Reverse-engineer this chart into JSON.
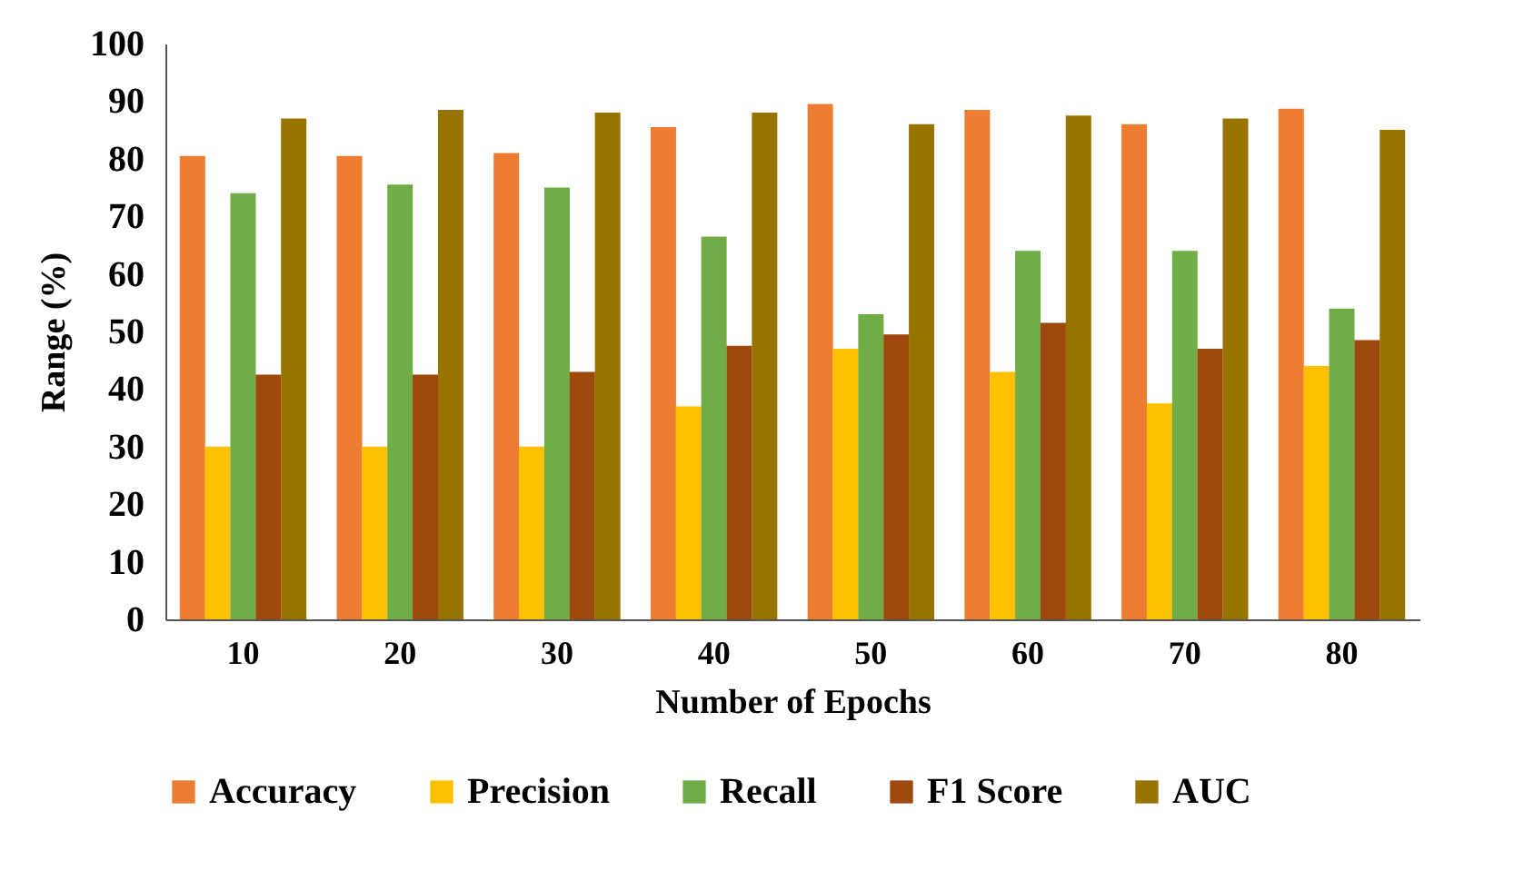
{
  "chart_data": {
    "type": "bar",
    "xlabel": "Number of Epochs",
    "ylabel": "Range (%)",
    "categories": [
      "10",
      "20",
      "30",
      "40",
      "50",
      "60",
      "70",
      "80"
    ],
    "series": [
      {
        "name": "Accuracy",
        "color": "#ed7d31",
        "values": [
          80.5,
          80.5,
          81,
          85.5,
          89.5,
          88.5,
          86,
          88.7
        ]
      },
      {
        "name": "Precision",
        "color": "#ffc000",
        "values": [
          30,
          30,
          30,
          37,
          47,
          43,
          37.5,
          44
        ]
      },
      {
        "name": "Recall",
        "color": "#70ad47",
        "values": [
          74,
          75.5,
          75,
          66.5,
          53,
          64,
          64,
          54
        ]
      },
      {
        "name": "F1 Score",
        "color": "#9e480e",
        "values": [
          42.5,
          42.5,
          43,
          47.5,
          49.5,
          51.5,
          47,
          48.5
        ]
      },
      {
        "name": "AUC",
        "color": "#997300",
        "values": [
          87,
          88.5,
          88,
          88,
          86,
          87.5,
          87,
          85
        ]
      }
    ],
    "ylim": [
      0,
      100
    ],
    "yticks": [
      0,
      10,
      20,
      30,
      40,
      50,
      60,
      70,
      80,
      90,
      100
    ],
    "grid": false,
    "legend": "bottom"
  }
}
